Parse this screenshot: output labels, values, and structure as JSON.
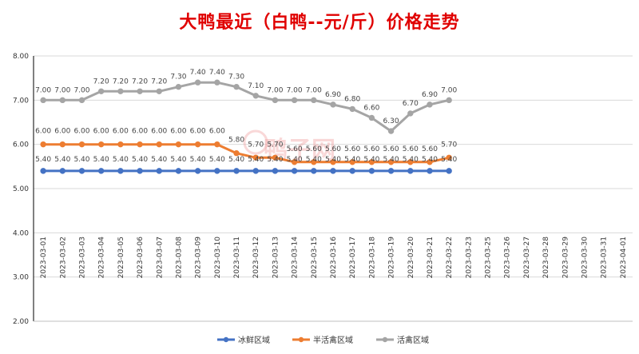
{
  "chart_data": {
    "type": "line",
    "title": "大鸭最近（白鸭--元/斤）价格走势",
    "watermark": "鸭子网",
    "ylim": [
      2.0,
      8.0
    ],
    "ytick_step": 1.0,
    "categories": [
      "2023-03-01",
      "2023-03-02",
      "2023-03-03",
      "2023-03-04",
      "2023-03-05",
      "2023-03-06",
      "2023-03-07",
      "2023-03-08",
      "2023-03-09",
      "2023-03-10",
      "2023-03-11",
      "2023-03-12",
      "2023-03-13",
      "2023-03-14",
      "2023-03-15",
      "2023-03-16",
      "2023-03-17",
      "2023-03-18",
      "2023-03-19",
      "2023-03-20",
      "2023-03-21",
      "2023-03-22",
      "2023-03-23",
      "2023-03-25",
      "2023-03-26",
      "2023-03-27",
      "2023-03-28",
      "2023-03-29",
      "2023-03-30",
      "2023-03-31",
      "2023-04-01"
    ],
    "series": [
      {
        "name": "冰鲜区域",
        "color": "#4472c4",
        "values": [
          5.4,
          5.4,
          5.4,
          5.4,
          5.4,
          5.4,
          5.4,
          5.4,
          5.4,
          5.4,
          5.4,
          5.4,
          5.4,
          5.4,
          5.4,
          5.4,
          5.4,
          5.4,
          5.4,
          5.4,
          5.4,
          5.4,
          null,
          null,
          null,
          null,
          null,
          null,
          null,
          null,
          null
        ]
      },
      {
        "name": "半活禽区域",
        "color": "#ed7d31",
        "values": [
          6.0,
          6.0,
          6.0,
          6.0,
          6.0,
          6.0,
          6.0,
          6.0,
          6.0,
          6.0,
          5.8,
          5.7,
          5.7,
          5.6,
          5.6,
          5.6,
          5.6,
          5.6,
          5.6,
          5.6,
          5.6,
          5.7,
          null,
          null,
          null,
          null,
          null,
          null,
          null,
          null,
          null
        ]
      },
      {
        "name": "活禽区域",
        "color": "#a5a5a5",
        "values": [
          7.0,
          7.0,
          7.0,
          7.2,
          7.2,
          7.2,
          7.2,
          7.3,
          7.4,
          7.4,
          7.3,
          7.1,
          7.0,
          7.0,
          7.0,
          6.9,
          6.8,
          6.6,
          6.3,
          6.7,
          6.9,
          7.0,
          null,
          null,
          null,
          null,
          null,
          null,
          null,
          null,
          null
        ]
      }
    ],
    "grid": "horizontal",
    "legend_position": "bottom"
  }
}
